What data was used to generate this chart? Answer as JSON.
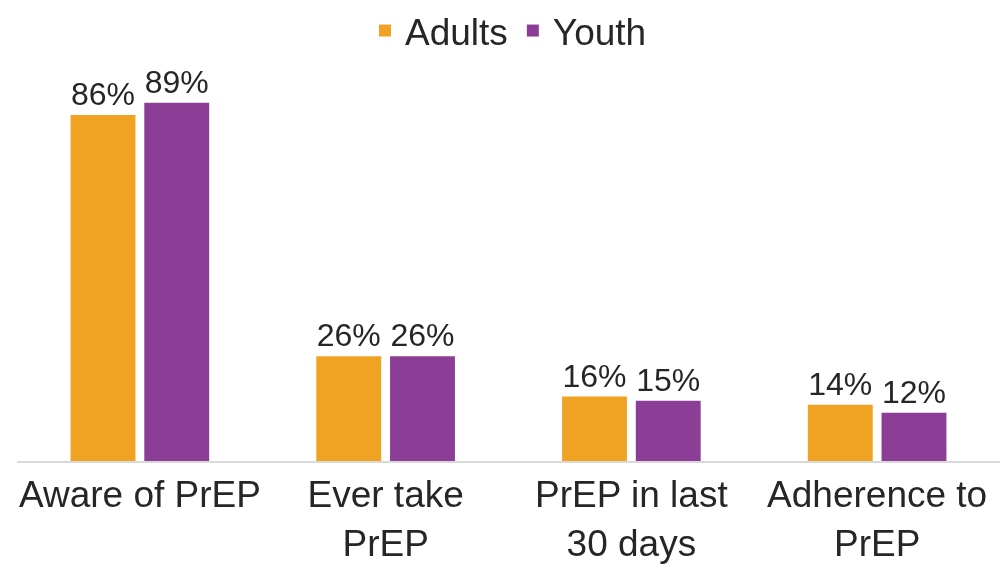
{
  "chart_data": {
    "type": "bar",
    "categories": [
      "Aware of PrEP",
      "Ever take PrEP",
      "PrEP in last 30 days",
      "Adherence to PrEP"
    ],
    "series": [
      {
        "name": "Adults",
        "color": "#f0a223",
        "values": [
          86,
          26,
          16,
          14
        ],
        "value_labels": [
          "86%",
          "26%",
          "16%",
          "14%"
        ]
      },
      {
        "name": "Youth",
        "color": "#8c3d96",
        "values": [
          89,
          26,
          15,
          12
        ],
        "value_labels": [
          "89%",
          "26%",
          "15%",
          "12%"
        ]
      }
    ],
    "legend": "top"
  }
}
